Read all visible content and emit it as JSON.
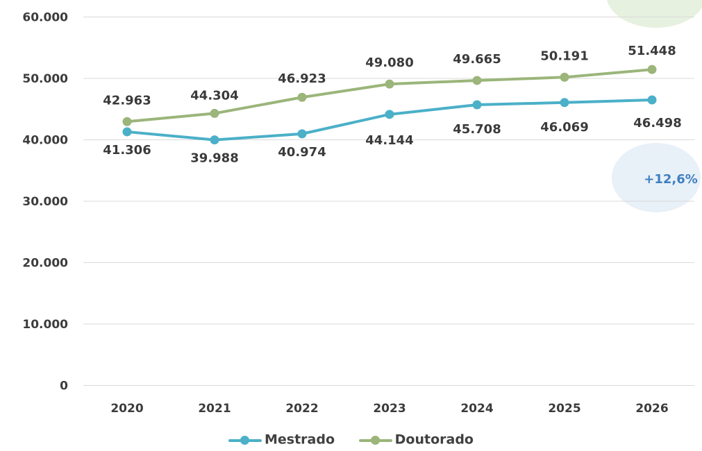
{
  "chart_data": {
    "type": "line",
    "categories": [
      "2020",
      "2021",
      "2022",
      "2023",
      "2024",
      "2025",
      "2026"
    ],
    "series": [
      {
        "name": "Mestrado",
        "color": "#4bb0c8",
        "values": [
          41306,
          39988,
          40974,
          44144,
          45708,
          46069,
          46498
        ],
        "labels": [
          "41.306",
          "39.988",
          "40.974",
          "44.144",
          "45.708",
          "46.069",
          "46.498"
        ]
      },
      {
        "name": "Doutorado",
        "color": "#9bb57a",
        "values": [
          42963,
          44304,
          46923,
          49080,
          49665,
          50191,
          51448
        ],
        "labels": [
          "42.963",
          "44.304",
          "46.923",
          "49.080",
          "49.665",
          "50.191",
          "51.448"
        ]
      }
    ],
    "ylim": [
      0,
      60000
    ],
    "yticks": [
      0,
      10000,
      20000,
      30000,
      40000,
      50000,
      60000
    ],
    "ytick_labels": [
      "0",
      "10.000",
      "20.000",
      "30.000",
      "40.000",
      "50.000",
      "60.000"
    ],
    "grid": true,
    "legend_position": "bottom",
    "annotations": [
      {
        "text": "+12,6%",
        "color": "#3f7fbf",
        "bubble_color": "#e8f0f8"
      },
      {
        "text": "",
        "bubble_color": "#e6f1e0"
      }
    ]
  }
}
